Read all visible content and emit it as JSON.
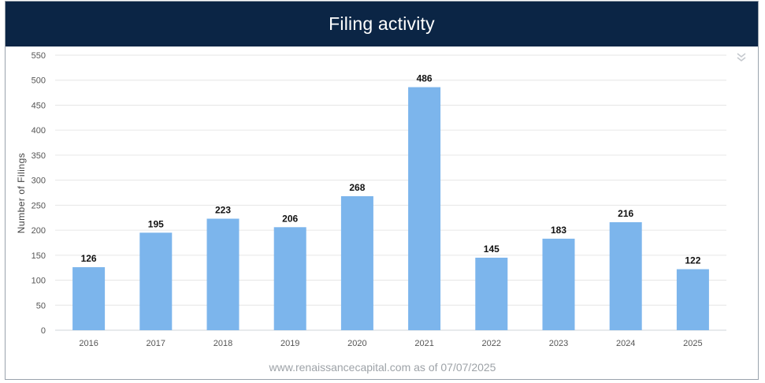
{
  "header": {
    "title": "Filing activity"
  },
  "footer": {
    "source": "www.renaissancecapital.com as of 07/07/2025"
  },
  "colors": {
    "header_bg": "#0b2545",
    "bar": "#7cb5ec",
    "grid": "#e6e6e6",
    "menu_icon": "#c5c9ce"
  },
  "icons": {
    "menu": "chevron-double-down-icon"
  },
  "chart_data": {
    "type": "bar",
    "title": "Filing activity",
    "xlabel": "",
    "ylabel": "Number of Filings",
    "categories": [
      "2016",
      "2017",
      "2018",
      "2019",
      "2020",
      "2021",
      "2022",
      "2023",
      "2024",
      "2025"
    ],
    "values": [
      126,
      195,
      223,
      206,
      268,
      486,
      145,
      183,
      216,
      122
    ],
    "ylim": [
      0,
      550
    ],
    "yticks": [
      0,
      50,
      100,
      150,
      200,
      250,
      300,
      350,
      400,
      450,
      500,
      550
    ],
    "grid": true,
    "legend": "none"
  }
}
